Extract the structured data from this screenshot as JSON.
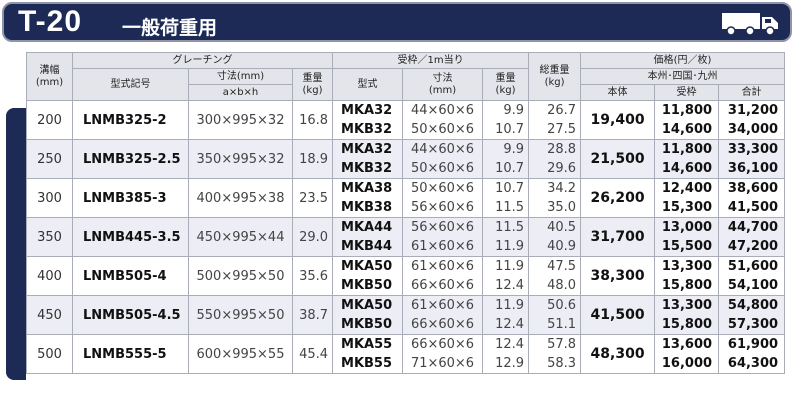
{
  "header": {
    "code": "T-20",
    "title": "一般荷重用",
    "icon": "truck-icon"
  },
  "columns": {
    "width": "溝幅\n(mm)",
    "grating": "グレーチング",
    "model": "型式記号",
    "dimension": "寸法(mm)",
    "dimension_sub": "a×b×h",
    "weight": "重量\n(kg)",
    "frame": "受枠／1m当り",
    "frame_model": "型式",
    "frame_dim": "寸法\n(mm)",
    "frame_weight": "重量\n(kg)",
    "total_weight": "総重量\n(kg)",
    "price": "価格(円／枚)",
    "region": "本州･四国･九州",
    "price_body": "本体",
    "price_frame": "受枠",
    "price_total": "合計"
  },
  "rows": [
    {
      "width": "200",
      "model": "LNMB325-2",
      "dim": "300×995×32",
      "weight": "16.8",
      "body_price": "19,400",
      "frames": [
        {
          "model": "MKA32",
          "dim": "44×60×6",
          "weight": "9.9",
          "total": "26.7",
          "frame_price": "11,800",
          "sum": "31,200"
        },
        {
          "model": "MKB32",
          "dim": "50×60×6",
          "weight": "10.7",
          "total": "27.5",
          "frame_price": "14,600",
          "sum": "34,000"
        }
      ]
    },
    {
      "width": "250",
      "model": "LNMB325-2.5",
      "dim": "350×995×32",
      "weight": "18.9",
      "body_price": "21,500",
      "frames": [
        {
          "model": "MKA32",
          "dim": "44×60×6",
          "weight": "9.9",
          "total": "28.8",
          "frame_price": "11,800",
          "sum": "33,300"
        },
        {
          "model": "MKB32",
          "dim": "50×60×6",
          "weight": "10.7",
          "total": "29.6",
          "frame_price": "14,600",
          "sum": "36,100"
        }
      ]
    },
    {
      "width": "300",
      "model": "LNMB385-3",
      "dim": "400×995×38",
      "weight": "23.5",
      "body_price": "26,200",
      "frames": [
        {
          "model": "MKA38",
          "dim": "50×60×6",
          "weight": "10.7",
          "total": "34.2",
          "frame_price": "12,400",
          "sum": "38,600"
        },
        {
          "model": "MKB38",
          "dim": "56×60×6",
          "weight": "11.5",
          "total": "35.0",
          "frame_price": "15,300",
          "sum": "41,500"
        }
      ]
    },
    {
      "width": "350",
      "model": "LNMB445-3.5",
      "dim": "450×995×44",
      "weight": "29.0",
      "body_price": "31,700",
      "frames": [
        {
          "model": "MKA44",
          "dim": "56×60×6",
          "weight": "11.5",
          "total": "40.5",
          "frame_price": "13,000",
          "sum": "44,700"
        },
        {
          "model": "MKB44",
          "dim": "61×60×6",
          "weight": "11.9",
          "total": "40.9",
          "frame_price": "15,500",
          "sum": "47,200"
        }
      ]
    },
    {
      "width": "400",
      "model": "LNMB505-4",
      "dim": "500×995×50",
      "weight": "35.6",
      "body_price": "38,300",
      "frames": [
        {
          "model": "MKA50",
          "dim": "61×60×6",
          "weight": "11.9",
          "total": "47.5",
          "frame_price": "13,300",
          "sum": "51,600"
        },
        {
          "model": "MKB50",
          "dim": "66×60×6",
          "weight": "12.4",
          "total": "48.0",
          "frame_price": "15,800",
          "sum": "54,100"
        }
      ]
    },
    {
      "width": "450",
      "model": "LNMB505-4.5",
      "dim": "550×995×50",
      "weight": "38.7",
      "body_price": "41,500",
      "frames": [
        {
          "model": "MKA50",
          "dim": "61×60×6",
          "weight": "11.9",
          "total": "50.6",
          "frame_price": "13,300",
          "sum": "54,800"
        },
        {
          "model": "MKB50",
          "dim": "66×60×6",
          "weight": "12.4",
          "total": "51.1",
          "frame_price": "15,800",
          "sum": "57,300"
        }
      ]
    },
    {
      "width": "500",
      "model": "LNMB555-5",
      "dim": "600×995×55",
      "weight": "45.4",
      "body_price": "48,300",
      "frames": [
        {
          "model": "MKA55",
          "dim": "66×60×6",
          "weight": "12.4",
          "total": "57.8",
          "frame_price": "13,600",
          "sum": "61,900"
        },
        {
          "model": "MKB55",
          "dim": "71×60×6",
          "weight": "12.9",
          "total": "58.3",
          "frame_price": "16,000",
          "sum": "64,300"
        }
      ]
    }
  ]
}
